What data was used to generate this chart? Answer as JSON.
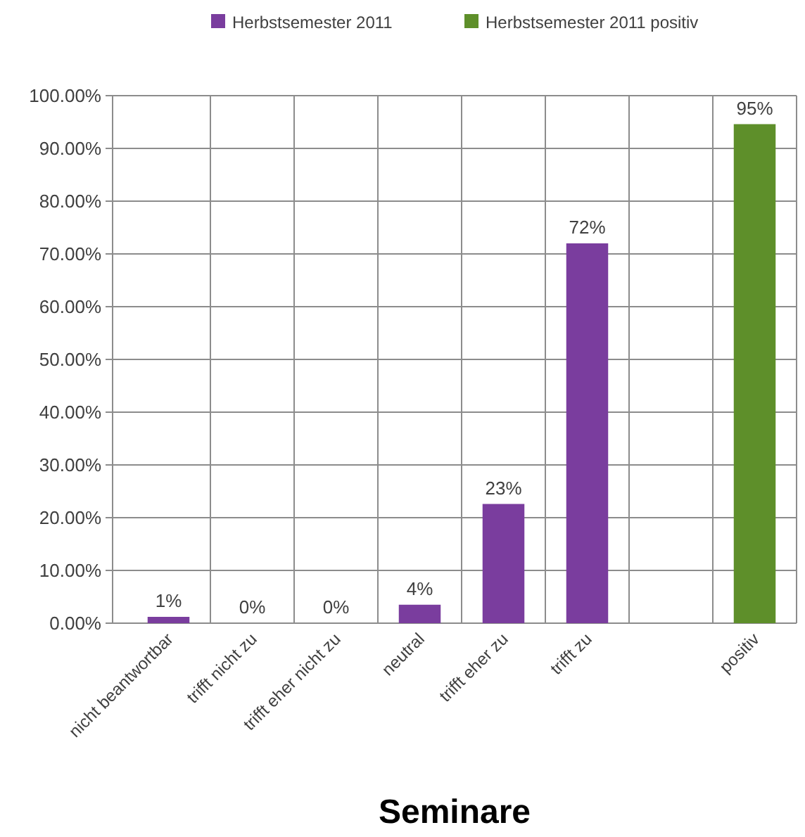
{
  "chart_data": {
    "type": "bar",
    "xlabel": "Seminare",
    "categories": [
      "nicht beantwortbar",
      "trifft nicht zu",
      "trifft eher nicht zu",
      "neutral",
      "trifft eher zu",
      "trifft zu",
      null,
      "positiv"
    ],
    "series": [
      {
        "name": "Herbstsemester 2011",
        "color": "#7a3d9e",
        "values": [
          1.2,
          0,
          0,
          3.5,
          22.6,
          72,
          null,
          null
        ],
        "value_labels": [
          "1%",
          "0%",
          "0%",
          "4%",
          "23%",
          "72%",
          null,
          null
        ]
      },
      {
        "name": "Herbstsemester 2011 positiv",
        "color": "#5e8f2a",
        "values": [
          null,
          null,
          null,
          null,
          null,
          null,
          null,
          94.6
        ],
        "value_labels": [
          null,
          null,
          null,
          null,
          null,
          null,
          null,
          "95%"
        ]
      }
    ],
    "ylim": [
      0,
      100
    ],
    "yticks": [
      {
        "value": 0,
        "label": "0.00%"
      },
      {
        "value": 10,
        "label": "10.00%"
      },
      {
        "value": 20,
        "label": "20.00%"
      },
      {
        "value": 30,
        "label": "30.00%"
      },
      {
        "value": 40,
        "label": "40.00%"
      },
      {
        "value": 50,
        "label": "50.00%"
      },
      {
        "value": 60,
        "label": "60.00%"
      },
      {
        "value": 70,
        "label": "70.00%"
      },
      {
        "value": 80,
        "label": "80.00%"
      },
      {
        "value": 90,
        "label": "90.00%"
      },
      {
        "value": 100,
        "label": "100.00%"
      }
    ],
    "grid": true,
    "legend": "top"
  }
}
